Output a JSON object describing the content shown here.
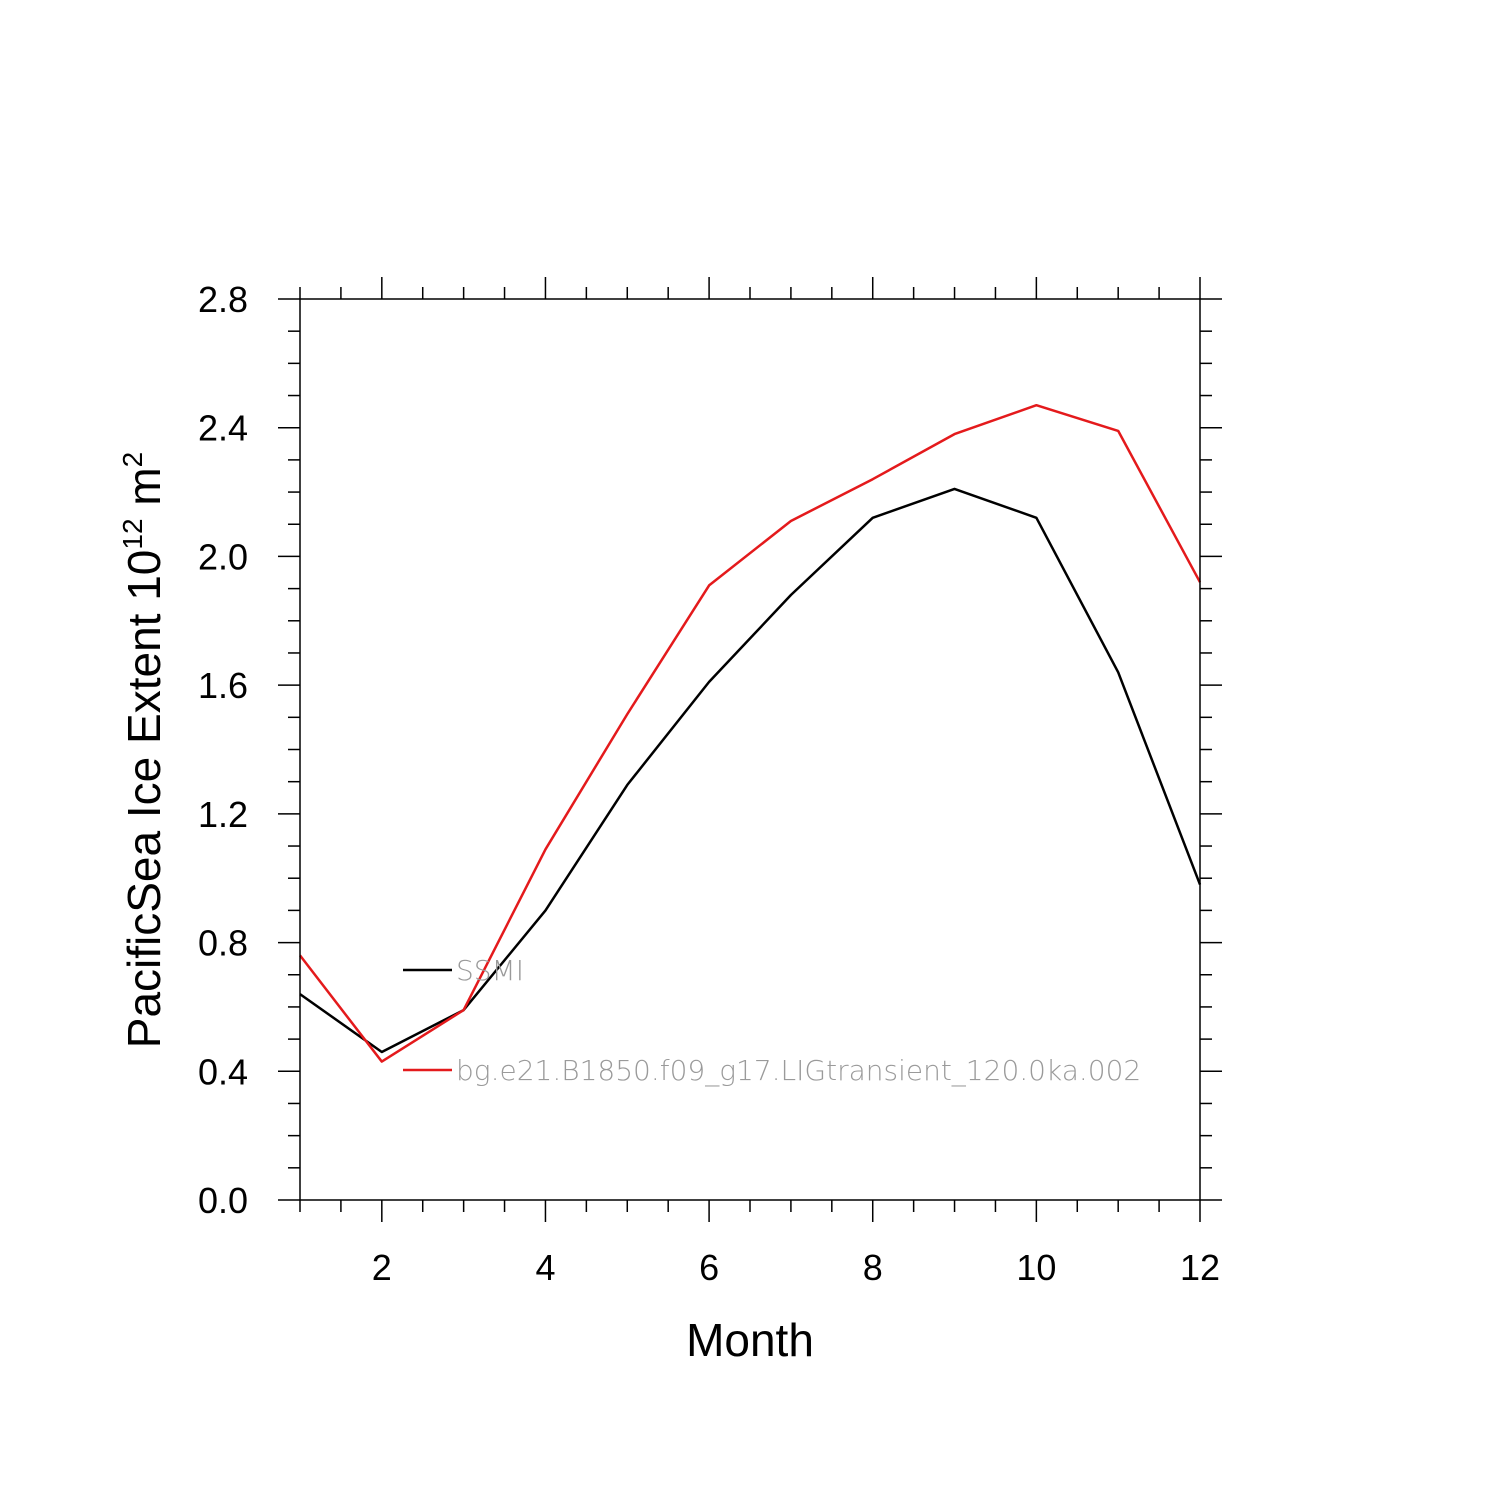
{
  "chart_data": {
    "type": "line",
    "xlabel": "Month",
    "ylabel": "PacificSea Ice Extent 10",
    "ylabel_sup1": "12",
    "ylabel_unit": " m",
    "ylabel_sup2": "2",
    "xlim": [
      1,
      12
    ],
    "ylim": [
      0.0,
      2.8
    ],
    "x": [
      1,
      2,
      3,
      4,
      5,
      6,
      7,
      8,
      9,
      10,
      11,
      12
    ],
    "x_ticks": [
      2,
      4,
      6,
      8,
      10,
      12
    ],
    "x_tick_labels": [
      "2",
      "4",
      "6",
      "8",
      "10",
      "12"
    ],
    "y_ticks": [
      0.0,
      0.4,
      0.8,
      1.2,
      1.6,
      2.0,
      2.4,
      2.8
    ],
    "y_tick_labels": [
      "0.0",
      "0.4",
      "0.8",
      "1.2",
      "1.6",
      "2.0",
      "2.4",
      "2.8"
    ],
    "grid": false,
    "legend_position": "lower-left",
    "series": [
      {
        "name": "SSMI",
        "color": "#000000",
        "values": [
          0.64,
          0.46,
          0.59,
          0.9,
          1.29,
          1.61,
          1.88,
          2.12,
          2.21,
          2.12,
          1.64,
          0.98
        ]
      },
      {
        "name": "bg.e21.B1850.f09_g17.LIGtransient_120.0ka.002",
        "color": "#e41a1c",
        "values": [
          0.76,
          0.43,
          0.59,
          1.09,
          1.51,
          1.91,
          2.11,
          2.24,
          2.38,
          2.47,
          2.39,
          1.92
        ]
      }
    ]
  }
}
